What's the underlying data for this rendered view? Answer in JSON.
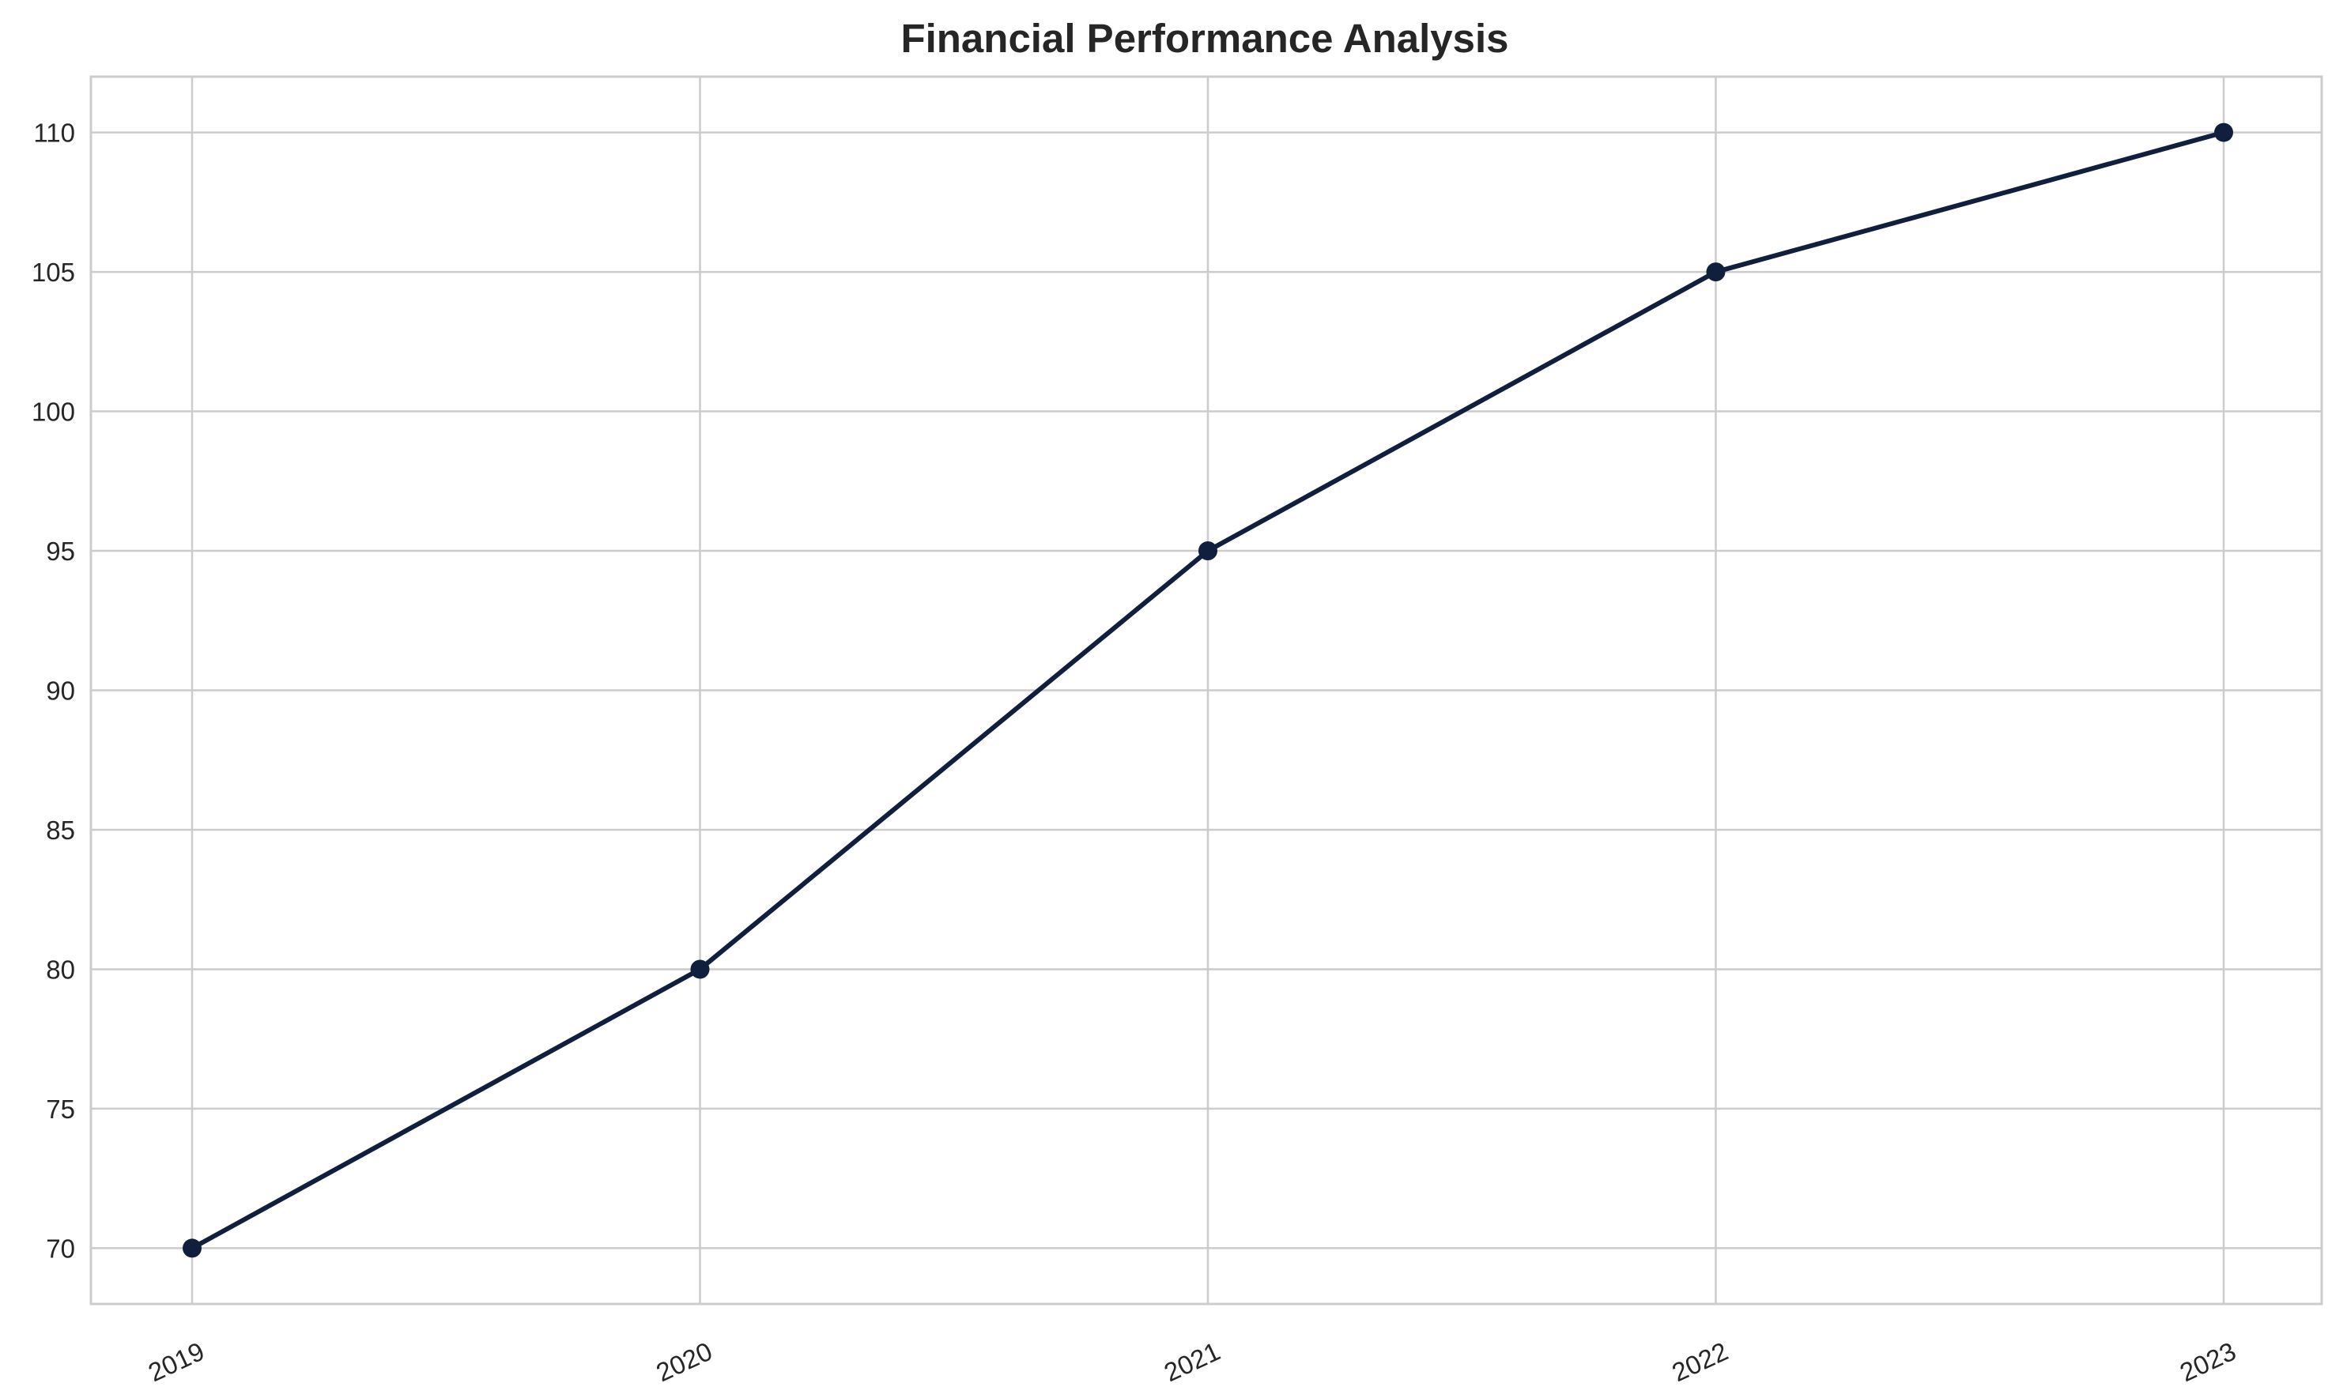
{
  "chart_data": {
    "type": "line",
    "title": "Financial Performance Analysis",
    "xlabel": "",
    "ylabel": "",
    "categories": [
      "2019",
      "2020",
      "2021",
      "2022",
      "2023"
    ],
    "series": [
      {
        "values": [
          70,
          80,
          95,
          105,
          110
        ],
        "color": "#0f1f3d",
        "marker": "circle"
      }
    ],
    "ylim": [
      68,
      112
    ],
    "yticks": [
      70,
      75,
      80,
      85,
      90,
      95,
      100,
      105,
      110
    ],
    "grid": true,
    "legend": "none",
    "x_tick_rotation_deg": 25
  }
}
